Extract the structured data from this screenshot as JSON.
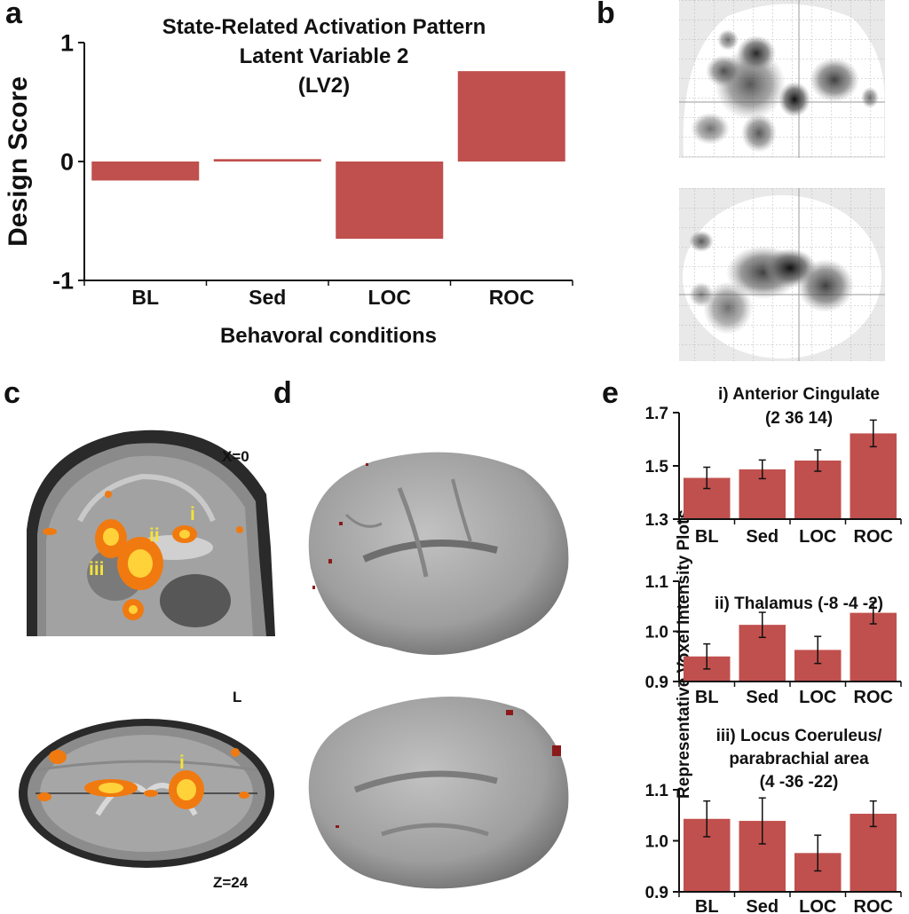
{
  "panels": {
    "a": "a",
    "b": "b",
    "c": "c",
    "d": "d",
    "e": "e"
  },
  "panel_c": {
    "sagittal_label": "X=0",
    "axial_label_top": "L",
    "axial_label_bottom": "Z=24",
    "roi_sagittal": [
      "i",
      "ii",
      "iii"
    ],
    "roi_axial": [
      "i"
    ]
  },
  "panel_e": {
    "ylabel": "Representative Voxel Intensity Plots"
  },
  "colors": {
    "bar": "#c0504d",
    "activation_hot": "#ffd23a",
    "activation_warm": "#f07a10",
    "cortex_mark": "#8b1a1a"
  },
  "chart_data": [
    {
      "id": "a",
      "type": "bar",
      "title_lines": [
        "State-Related Activation Pattern",
        "Latent Variable 2",
        "(LV2)"
      ],
      "xlabel": "Behavoral conditions",
      "ylabel": "Design Score",
      "categories": [
        "BL",
        "Sed",
        "LOC",
        "ROC"
      ],
      "values": [
        -0.16,
        0.02,
        -0.65,
        0.76
      ],
      "ylim": [
        -1,
        1
      ],
      "yticks": [
        1,
        0,
        -1
      ],
      "ytick_labels": [
        "1",
        "0",
        "-1"
      ],
      "color": "#c0504d"
    },
    {
      "id": "e-i",
      "type": "bar",
      "title_lines": [
        "i) Anterior Cingulate",
        "(2 36 14)"
      ],
      "categories": [
        "BL",
        "Sed",
        "LOC",
        "ROC"
      ],
      "values": [
        1.455,
        1.487,
        1.52,
        1.622
      ],
      "errors": [
        0.04,
        0.035,
        0.04,
        0.05
      ],
      "ylim": [
        1.3,
        1.7
      ],
      "yticks": [
        1.7,
        1.5,
        1.3
      ],
      "ytick_labels": [
        "1.7",
        "1.5",
        "1.3"
      ],
      "color": "#c0504d"
    },
    {
      "id": "e-ii",
      "type": "bar",
      "title_lines": [
        "ii) Thalamus (-8 -4 -2)"
      ],
      "categories": [
        "BL",
        "Sed",
        "LOC",
        "ROC"
      ],
      "values": [
        0.95,
        1.013,
        0.963,
        1.037
      ],
      "errors": [
        0.025,
        0.025,
        0.027,
        0.022
      ],
      "ylim": [
        0.9,
        1.1
      ],
      "yticks": [
        1.1,
        1.0,
        0.9
      ],
      "ytick_labels": [
        "1.1",
        "1.0",
        "0.9"
      ],
      "color": "#c0504d"
    },
    {
      "id": "e-iii",
      "type": "bar",
      "title_lines": [
        "iii) Locus Coeruleus/",
        "parabrachial area",
        "(4 -36 -22)"
      ],
      "categories": [
        "BL",
        "Sed",
        "LOC",
        "ROC"
      ],
      "values": [
        1.043,
        1.039,
        0.976,
        1.053
      ],
      "errors": [
        0.035,
        0.045,
        0.035,
        0.025
      ],
      "ylim": [
        0.9,
        1.1
      ],
      "yticks": [
        1.1,
        1.0,
        0.9
      ],
      "ytick_labels": [
        "1.1",
        "1.0",
        "0.9"
      ],
      "color": "#c0504d"
    }
  ]
}
